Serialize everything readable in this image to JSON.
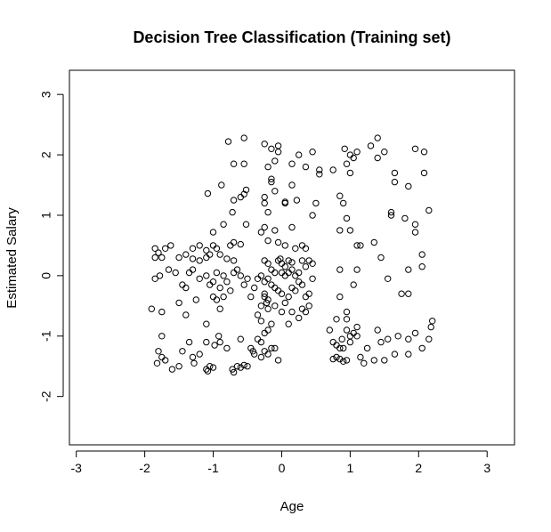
{
  "chart_data": {
    "type": "scatter",
    "title": "Decision Tree Classification (Training set)",
    "xlabel": "Age",
    "ylabel": "Estimated Salary",
    "xlim": [
      -3.1,
      3.4
    ],
    "ylim": [
      -2.8,
      3.4
    ],
    "xticks": [
      -3,
      -2,
      -1,
      0,
      1,
      2,
      3
    ],
    "yticks": [
      -2,
      -1,
      0,
      1,
      2,
      3
    ],
    "grid": false,
    "legend": "none",
    "marker": "open-circle",
    "points": [
      [
        -1.85,
        0.45
      ],
      [
        -1.8,
        0.38
      ],
      [
        -1.7,
        0.45
      ],
      [
        -1.75,
        0.3
      ],
      [
        -1.62,
        0.5
      ],
      [
        -1.85,
        0.3
      ],
      [
        -1.5,
        0.3
      ],
      [
        -1.4,
        0.35
      ],
      [
        -1.3,
        0.45
      ],
      [
        -1.2,
        0.5
      ],
      [
        -1.1,
        0.42
      ],
      [
        -1.05,
        0.35
      ],
      [
        -1.0,
        0.5
      ],
      [
        -0.95,
        0.45
      ],
      [
        -0.9,
        0.35
      ],
      [
        -1.3,
        0.28
      ],
      [
        -1.2,
        0.25
      ],
      [
        -1.1,
        0.3
      ],
      [
        -0.75,
        0.5
      ],
      [
        -0.7,
        0.55
      ],
      [
        -0.6,
        0.52
      ],
      [
        -1.0,
        0.72
      ],
      [
        -0.8,
        0.28
      ],
      [
        -0.7,
        0.25
      ],
      [
        -1.85,
        -0.05
      ],
      [
        -1.78,
        0.0
      ],
      [
        -1.65,
        0.1
      ],
      [
        -1.55,
        0.05
      ],
      [
        -1.45,
        -0.15
      ],
      [
        -1.4,
        -0.2
      ],
      [
        -1.35,
        0.05
      ],
      [
        -1.3,
        0.1
      ],
      [
        -1.2,
        -0.05
      ],
      [
        -1.1,
        0.0
      ],
      [
        -1.0,
        -0.1
      ],
      [
        -0.95,
        0.05
      ],
      [
        -0.85,
        0.0
      ],
      [
        -0.8,
        -0.1
      ],
      [
        -0.7,
        0.05
      ],
      [
        -0.6,
        0.0
      ],
      [
        -0.5,
        -0.05
      ],
      [
        -0.55,
        -0.15
      ],
      [
        -0.9,
        -0.2
      ],
      [
        -0.75,
        -0.25
      ],
      [
        -1.05,
        -0.15
      ],
      [
        -0.65,
        0.1
      ],
      [
        -1.9,
        -0.55
      ],
      [
        -1.75,
        -0.6
      ],
      [
        -1.5,
        -0.45
      ],
      [
        -1.4,
        -0.65
      ],
      [
        -1.25,
        -0.4
      ],
      [
        -1.1,
        -0.8
      ],
      [
        -1.0,
        -0.35
      ],
      [
        -0.95,
        -0.4
      ],
      [
        -0.85,
        -0.35
      ],
      [
        -0.9,
        -0.55
      ],
      [
        -1.75,
        -1.0
      ],
      [
        -1.8,
        -1.25
      ],
      [
        -1.75,
        -1.35
      ],
      [
        -1.82,
        -1.45
      ],
      [
        -1.7,
        -1.4
      ],
      [
        -1.6,
        -1.55
      ],
      [
        -1.5,
        -1.5
      ],
      [
        -1.45,
        -1.25
      ],
      [
        -1.35,
        -1.1
      ],
      [
        -1.3,
        -1.35
      ],
      [
        -1.28,
        -1.45
      ],
      [
        -1.2,
        -1.3
      ],
      [
        -1.1,
        -1.1
      ],
      [
        -1.05,
        -1.5
      ],
      [
        -1.1,
        -1.55
      ],
      [
        -1.08,
        -1.58
      ],
      [
        -1.0,
        -1.52
      ],
      [
        -0.98,
        -1.15
      ],
      [
        -0.92,
        -1.0
      ],
      [
        -0.9,
        -1.1
      ],
      [
        -0.8,
        -1.2
      ],
      [
        -0.72,
        -1.55
      ],
      [
        -0.7,
        -1.6
      ],
      [
        -0.65,
        -1.5
      ],
      [
        -0.6,
        -1.52
      ],
      [
        -0.55,
        -1.48
      ],
      [
        -0.5,
        -1.5
      ],
      [
        -0.6,
        -1.05
      ],
      [
        -0.78,
        2.22
      ],
      [
        -0.55,
        2.28
      ],
      [
        -0.7,
        1.85
      ],
      [
        -0.55,
        1.85
      ],
      [
        -0.6,
        1.3
      ],
      [
        -0.55,
        1.35
      ],
      [
        -0.52,
        1.42
      ],
      [
        -0.88,
        1.5
      ],
      [
        -1.08,
        1.36
      ],
      [
        -0.72,
        1.05
      ],
      [
        -0.7,
        1.25
      ],
      [
        -0.85,
        0.85
      ],
      [
        -0.52,
        0.85
      ],
      [
        -0.25,
        2.18
      ],
      [
        -0.15,
        2.1
      ],
      [
        -0.05,
        2.15
      ],
      [
        -0.05,
        2.05
      ],
      [
        -0.1,
        1.9
      ],
      [
        -0.2,
        1.8
      ],
      [
        -0.15,
        1.55
      ],
      [
        -0.15,
        1.6
      ],
      [
        -0.25,
        1.3
      ],
      [
        -0.25,
        1.2
      ],
      [
        -0.2,
        1.05
      ],
      [
        -0.1,
        1.4
      ],
      [
        0.05,
        1.2
      ],
      [
        0.05,
        1.22
      ],
      [
        -0.3,
        0.72
      ],
      [
        -0.25,
        0.8
      ],
      [
        -0.2,
        0.58
      ],
      [
        -0.1,
        0.75
      ],
      [
        -0.05,
        0.55
      ],
      [
        0.05,
        0.5
      ],
      [
        0.15,
        0.8
      ],
      [
        0.2,
        0.45
      ],
      [
        0.15,
        1.5
      ],
      [
        0.22,
        1.25
      ],
      [
        0.15,
        1.85
      ],
      [
        0.25,
        2.0
      ],
      [
        0.45,
        2.05
      ],
      [
        0.35,
        1.8
      ],
      [
        0.45,
        1.0
      ],
      [
        0.5,
        1.2
      ],
      [
        0.55,
        1.75
      ],
      [
        0.55,
        1.68
      ],
      [
        0.3,
        0.5
      ],
      [
        0.35,
        0.45
      ],
      [
        -0.25,
        0.25
      ],
      [
        -0.2,
        0.2
      ],
      [
        -0.15,
        0.1
      ],
      [
        -0.05,
        0.25
      ],
      [
        -0.02,
        0.28
      ],
      [
        0.0,
        0.2
      ],
      [
        0.05,
        0.15
      ],
      [
        0.1,
        0.25
      ],
      [
        0.15,
        0.22
      ],
      [
        -0.1,
        0.05
      ],
      [
        0.0,
        0.05
      ],
      [
        0.05,
        0.0
      ],
      [
        0.1,
        0.05
      ],
      [
        0.15,
        0.1
      ],
      [
        0.2,
        0.0
      ],
      [
        0.25,
        0.05
      ],
      [
        0.3,
        0.25
      ],
      [
        0.35,
        0.15
      ],
      [
        0.4,
        0.25
      ],
      [
        0.45,
        0.2
      ],
      [
        -0.3,
        0.0
      ],
      [
        -0.35,
        -0.05
      ],
      [
        -0.25,
        -0.1
      ],
      [
        -0.2,
        -0.05
      ],
      [
        -0.15,
        -0.15
      ],
      [
        -0.1,
        -0.2
      ],
      [
        -0.05,
        -0.25
      ],
      [
        0.0,
        -0.3
      ],
      [
        0.1,
        -0.35
      ],
      [
        0.15,
        -0.2
      ],
      [
        0.2,
        -0.25
      ],
      [
        0.25,
        -0.1
      ],
      [
        0.3,
        -0.15
      ],
      [
        0.35,
        -0.35
      ],
      [
        0.4,
        -0.3
      ],
      [
        0.45,
        -0.05
      ],
      [
        -0.25,
        -0.35
      ],
      [
        -0.2,
        -0.4
      ],
      [
        -0.25,
        -0.3
      ],
      [
        -0.22,
        -0.45
      ],
      [
        -0.3,
        -0.5
      ],
      [
        -0.2,
        -0.55
      ],
      [
        -0.1,
        -0.5
      ],
      [
        0.0,
        -0.6
      ],
      [
        0.05,
        -0.45
      ],
      [
        0.15,
        -0.6
      ],
      [
        0.3,
        -0.55
      ],
      [
        0.35,
        -0.6
      ],
      [
        0.4,
        -0.5
      ],
      [
        0.25,
        -0.7
      ],
      [
        -0.3,
        -0.75
      ],
      [
        -0.35,
        -0.65
      ],
      [
        -0.15,
        -0.8
      ],
      [
        0.1,
        -0.8
      ],
      [
        -0.25,
        -0.95
      ],
      [
        -0.2,
        -0.9
      ],
      [
        -0.3,
        -1.1
      ],
      [
        -0.35,
        -1.05
      ],
      [
        -0.25,
        -1.25
      ],
      [
        -0.2,
        -1.3
      ],
      [
        -0.3,
        -1.35
      ],
      [
        -0.15,
        -1.2
      ],
      [
        -0.45,
        -1.2
      ],
      [
        -0.4,
        -1.3
      ],
      [
        -0.42,
        -1.25
      ],
      [
        -0.05,
        -1.4
      ],
      [
        -0.1,
        -1.2
      ],
      [
        -0.45,
        -0.35
      ],
      [
        -0.4,
        -0.2
      ],
      [
        0.75,
        1.75
      ],
      [
        0.85,
        1.32
      ],
      [
        0.92,
        2.1
      ],
      [
        0.95,
        1.85
      ],
      [
        1.0,
        1.7
      ],
      [
        1.0,
        2.0
      ],
      [
        1.05,
        1.95
      ],
      [
        1.1,
        2.05
      ],
      [
        1.3,
        2.15
      ],
      [
        1.4,
        2.28
      ],
      [
        1.5,
        2.05
      ],
      [
        1.4,
        1.95
      ],
      [
        1.65,
        1.7
      ],
      [
        1.65,
        1.55
      ],
      [
        1.95,
        2.1
      ],
      [
        2.08,
        2.05
      ],
      [
        1.85,
        1.48
      ],
      [
        2.08,
        1.7
      ],
      [
        0.9,
        1.2
      ],
      [
        0.95,
        0.95
      ],
      [
        1.0,
        0.75
      ],
      [
        0.85,
        0.75
      ],
      [
        1.1,
        0.5
      ],
      [
        1.15,
        0.5
      ],
      [
        1.35,
        0.55
      ],
      [
        1.45,
        0.3
      ],
      [
        1.6,
        1.05
      ],
      [
        1.6,
        1.0
      ],
      [
        1.8,
        0.95
      ],
      [
        1.95,
        0.85
      ],
      [
        1.95,
        0.72
      ],
      [
        2.05,
        0.35
      ],
      [
        2.15,
        1.08
      ],
      [
        2.05,
        0.15
      ],
      [
        1.85,
        0.1
      ],
      [
        1.55,
        -0.05
      ],
      [
        1.75,
        -0.3
      ],
      [
        1.85,
        -0.3
      ],
      [
        0.85,
        0.1
      ],
      [
        1.1,
        0.1
      ],
      [
        1.05,
        -0.15
      ],
      [
        0.85,
        -0.35
      ],
      [
        0.95,
        -0.6
      ],
      [
        0.95,
        -0.72
      ],
      [
        0.8,
        -0.72
      ],
      [
        0.95,
        -0.9
      ],
      [
        1.0,
        -1.0
      ],
      [
        0.7,
        -0.9
      ],
      [
        0.75,
        -1.1
      ],
      [
        0.8,
        -1.15
      ],
      [
        0.88,
        -1.05
      ],
      [
        0.9,
        -1.2
      ],
      [
        1.0,
        -1.1
      ],
      [
        1.05,
        -0.95
      ],
      [
        1.1,
        -0.85
      ],
      [
        1.1,
        -1.0
      ],
      [
        1.15,
        -1.35
      ],
      [
        1.2,
        -1.45
      ],
      [
        1.25,
        -1.2
      ],
      [
        1.35,
        -1.4
      ],
      [
        1.4,
        -0.9
      ],
      [
        1.45,
        -1.1
      ],
      [
        1.55,
        -1.05
      ],
      [
        1.5,
        -1.4
      ],
      [
        1.65,
        -1.3
      ],
      [
        1.7,
        -1.0
      ],
      [
        1.85,
        -1.05
      ],
      [
        1.95,
        -0.95
      ],
      [
        1.85,
        -1.3
      ],
      [
        2.05,
        -1.2
      ],
      [
        2.15,
        -1.05
      ],
      [
        2.2,
        -0.75
      ],
      [
        2.18,
        -0.85
      ],
      [
        0.8,
        -1.35
      ],
      [
        0.85,
        -1.38
      ],
      [
        0.9,
        -1.42
      ],
      [
        0.95,
        -1.4
      ],
      [
        0.75,
        -1.38
      ],
      [
        0.85,
        -1.2
      ]
    ]
  }
}
